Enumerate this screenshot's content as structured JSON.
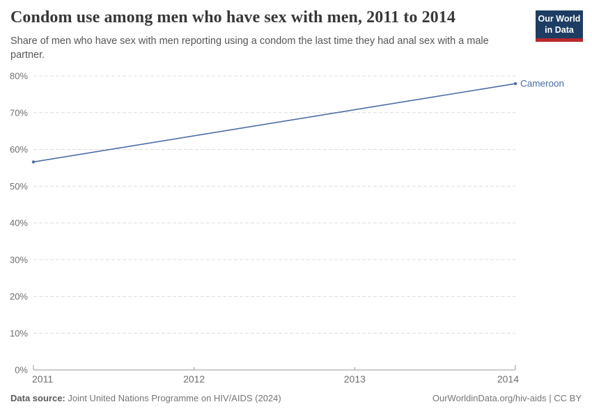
{
  "header": {
    "title": "Condom use among men who have sex with men, 2011 to 2014",
    "subtitle": "Share of men who have sex with men reporting using a condom the last time they had anal sex with a male partner."
  },
  "logo": {
    "line1": "Our World",
    "line2": "in Data",
    "bg_color": "#1d3d63",
    "accent_color": "#b8272c"
  },
  "chart_data": {
    "type": "line",
    "title": "Condom use among men who have sex with men, 2011 to 2014",
    "x": [
      2011,
      2014
    ],
    "series": [
      {
        "name": "Cameroon",
        "color": "#4a6da5",
        "values": [
          56.6,
          77.9
        ]
      }
    ],
    "xlabel": "",
    "ylabel": "",
    "xlim": [
      2011,
      2014
    ],
    "ylim": [
      0,
      80
    ],
    "yticks": [
      0,
      10,
      20,
      30,
      40,
      50,
      60,
      70,
      80
    ],
    "ytick_suffix": "%",
    "xticks": [
      2011,
      2012,
      2013,
      2014
    ],
    "grid": "horizontal dashed",
    "legend": "end-of-line label",
    "markers": "endpoints only"
  },
  "footer": {
    "source_label": "Data source:",
    "source_text": " Joint United Nations Programme on HIV/AIDS (2024)",
    "right_text": "OurWorldinData.org/hiv-aids | CC BY"
  },
  "colors": {
    "line": "#4a6da5",
    "grid": "#dcdcdc",
    "axis": "#999999",
    "tick_label": "#6e6e6e"
  }
}
